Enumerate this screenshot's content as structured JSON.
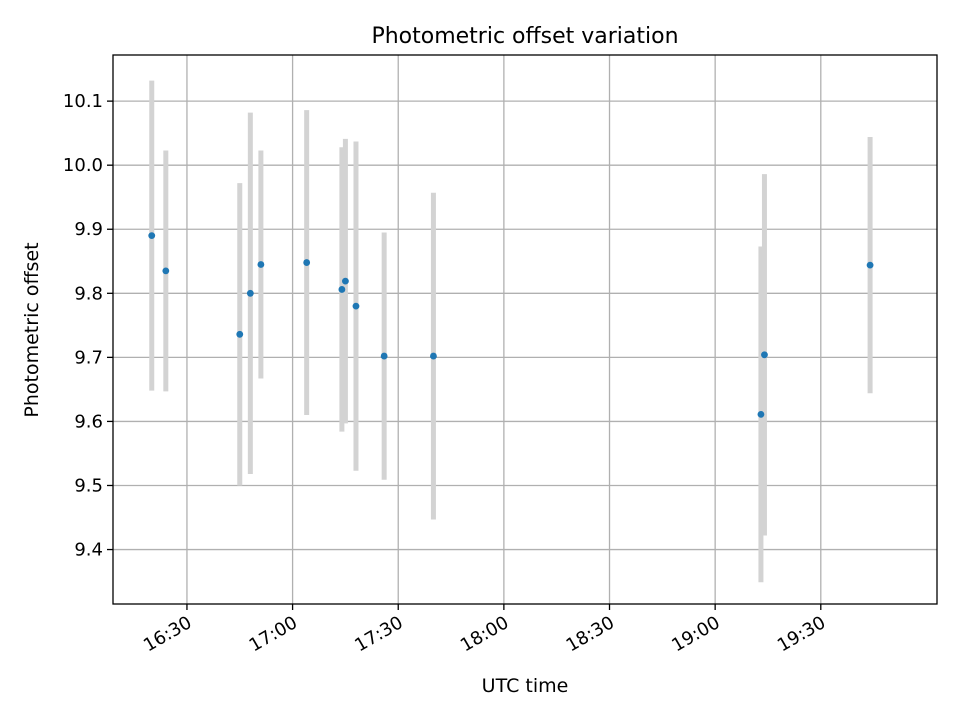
{
  "chart_data": {
    "type": "scatter",
    "title": "Photometric offset variation",
    "xlabel": "UTC time",
    "ylabel": "Photometric offset",
    "grid": true,
    "xlim": [
      "16:09",
      "20:03"
    ],
    "ylim": [
      9.315,
      10.172
    ],
    "x_ticks": [
      "16:30",
      "17:00",
      "17:30",
      "18:00",
      "18:30",
      "19:00",
      "19:30"
    ],
    "y_ticks": [
      9.4,
      9.5,
      9.6,
      9.7,
      9.8,
      9.9,
      10.0,
      10.1
    ],
    "y_tick_labels": [
      "9.4",
      "9.5",
      "9.6",
      "9.7",
      "9.8",
      "9.9",
      "10.0",
      "10.1"
    ],
    "colors": {
      "marker": "#1f77b4",
      "errorbar": "#d3d3d3",
      "grid": "#b0b0b0"
    },
    "points": [
      {
        "x": "16:20",
        "y": 9.89,
        "err": 0.242
      },
      {
        "x": "16:24",
        "y": 9.835,
        "err": 0.188
      },
      {
        "x": "16:45",
        "y": 9.736,
        "err": 0.236
      },
      {
        "x": "16:48",
        "y": 9.8,
        "err": 0.282
      },
      {
        "x": "16:51",
        "y": 9.845,
        "err": 0.178
      },
      {
        "x": "17:04",
        "y": 9.848,
        "err": 0.238
      },
      {
        "x": "17:14",
        "y": 9.806,
        "err": 0.222
      },
      {
        "x": "17:15",
        "y": 9.819,
        "err": 0.222
      },
      {
        "x": "17:18",
        "y": 9.78,
        "err": 0.257
      },
      {
        "x": "17:26",
        "y": 9.702,
        "err": 0.193
      },
      {
        "x": "17:40",
        "y": 9.702,
        "err": 0.255
      },
      {
        "x": "19:13",
        "y": 9.611,
        "err": 0.262
      },
      {
        "x": "19:14",
        "y": 9.704,
        "err": 0.282
      },
      {
        "x": "19:44",
        "y": 9.844,
        "err": 0.2
      }
    ]
  }
}
